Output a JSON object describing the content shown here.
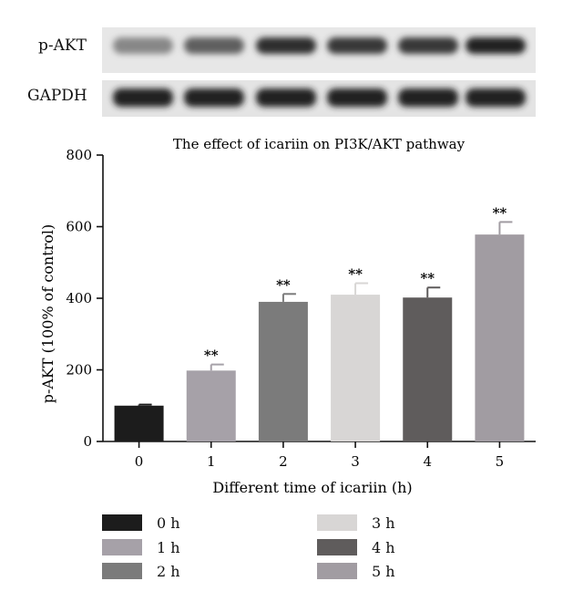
{
  "blot": {
    "rows": [
      {
        "label": "p-AKT",
        "intensity": [
          0.45,
          0.65,
          0.9,
          0.85,
          0.85,
          0.95
        ]
      },
      {
        "label": "GAPDH",
        "intensity": [
          0.95,
          0.95,
          0.95,
          0.95,
          0.95,
          0.95
        ]
      }
    ]
  },
  "chart_data": {
    "type": "bar",
    "title": "The effect of icariin on PI3K/AKT pathway",
    "xlabel": "Different time of icariin (h)",
    "ylabel": "p-AKT (100% of control)",
    "ylim": [
      0,
      800
    ],
    "yticks": [
      0,
      200,
      400,
      600,
      800
    ],
    "categories": [
      "0",
      "1",
      "2",
      "3",
      "4",
      "5"
    ],
    "values": [
      100,
      198,
      390,
      410,
      402,
      578
    ],
    "errors": [
      3,
      17,
      22,
      32,
      28,
      35
    ],
    "annotations": [
      "",
      "**",
      "**",
      "**",
      "**",
      "**"
    ],
    "colors": [
      "#1c1c1c",
      "#a6a1a8",
      "#7b7b7b",
      "#d8d6d5",
      "#5f5c5c",
      "#a19ca2"
    ],
    "grid": false,
    "legend": {
      "placement": "bottom",
      "entries": [
        "0 h",
        "1 h",
        "2 h",
        "3 h",
        "4 h",
        "5 h"
      ]
    }
  }
}
